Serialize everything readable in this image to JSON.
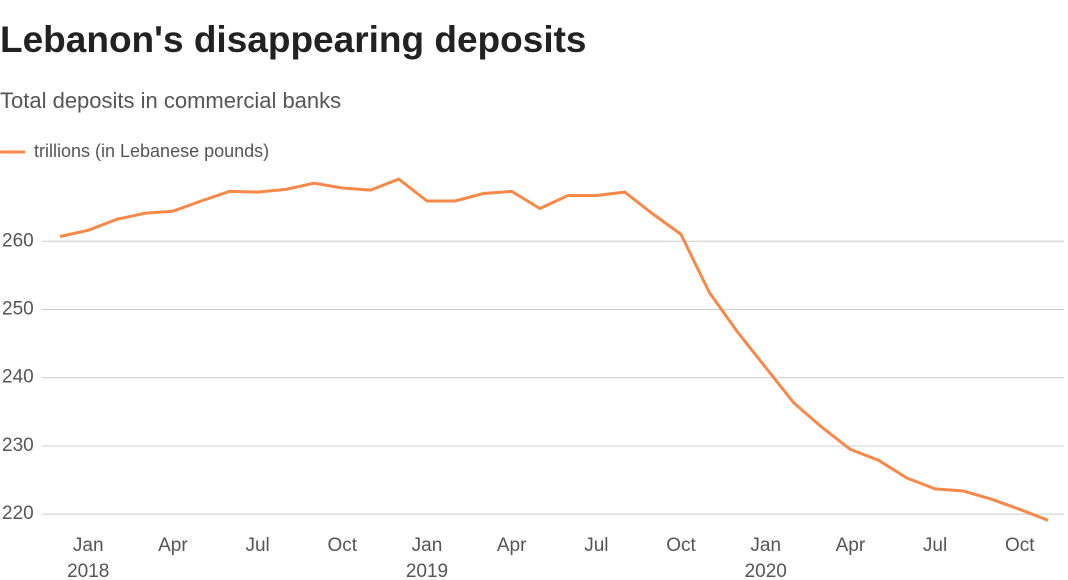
{
  "chart_data": {
    "type": "line",
    "title": "Lebanon's disappearing deposits",
    "subtitle": "Total deposits in commercial banks",
    "categories": [
      null,
      "Jan",
      null,
      null,
      "Apr",
      null,
      null,
      "Jul",
      null,
      null,
      "Oct",
      null,
      null,
      "Jan",
      null,
      null,
      "Apr",
      null,
      null,
      "Jul",
      null,
      null,
      "Oct",
      null,
      null,
      "Jan",
      null,
      null,
      "Apr",
      null,
      null,
      "Jul",
      null,
      null,
      "Oct",
      null
    ],
    "x_year_labels": [
      "2018",
      "2019",
      "2020"
    ],
    "series": [
      {
        "name": "trillions (in Lebanese pounds)",
        "color": "#f5894a",
        "values": [
          260.7,
          261.6,
          263.2,
          264.1,
          264.4,
          265.9,
          267.3,
          267.2,
          267.6,
          268.5,
          267.8,
          267.5,
          269.1,
          265.9,
          265.9,
          267.0,
          267.3,
          264.8,
          266.7,
          266.7,
          267.2,
          264.0,
          261.0,
          252.5,
          246.7,
          241.5,
          236.3,
          232.7,
          229.5,
          227.9,
          225.3,
          223.7,
          223.4,
          222.2,
          220.7,
          219.1
        ]
      }
    ],
    "ylim": [
      219,
      270
    ],
    "yticks": [
      220,
      230,
      240,
      250,
      260
    ],
    "grid": true
  }
}
